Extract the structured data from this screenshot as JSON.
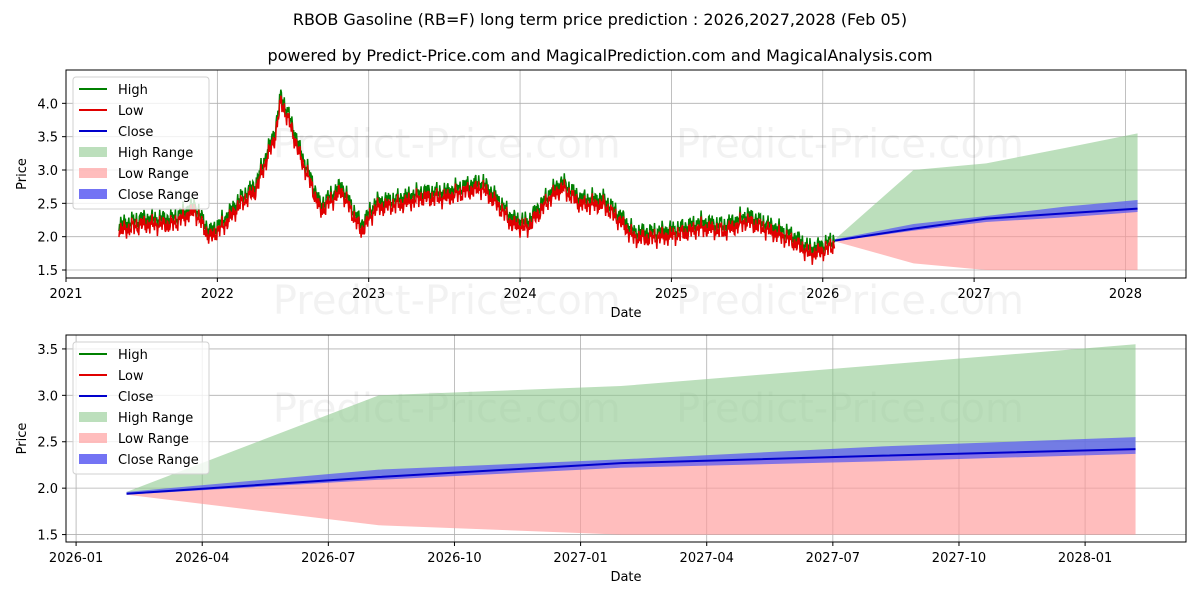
{
  "title_line1": "RBOB Gasoline (RB=F) long term price prediction : 2026,2027,2028 (Feb 05)",
  "title_line2": "powered by Predict-Price.com and MagicalPrediction.com and MagicalAnalysis.com",
  "watermark": "Predict-Price.com",
  "colors": {
    "high": "#008000",
    "low": "#e00000",
    "close": "#0000cc",
    "high_range": "#8fc98f",
    "low_range": "#ff9a9a",
    "close_range": "#5b5bf2"
  },
  "chart_data": [
    {
      "type": "line",
      "name": "history-and-forecast",
      "xlabel": "Date",
      "ylabel": "Price",
      "xlim": [
        2021.0,
        2028.4
      ],
      "ylim": [
        1.38,
        4.5
      ],
      "xticks": [
        2021,
        2022,
        2023,
        2024,
        2025,
        2026,
        2027,
        2028
      ],
      "xtick_labels": [
        "2021",
        "2022",
        "2023",
        "2024",
        "2025",
        "2026",
        "2027",
        "2028"
      ],
      "yticks": [
        1.5,
        2.0,
        2.5,
        3.0,
        3.5,
        4.0
      ],
      "ytick_labels": [
        "1.5",
        "2.0",
        "2.5",
        "3.0",
        "3.5",
        "4.0"
      ],
      "legend": [
        "High",
        "Low",
        "Close",
        "High Range",
        "Low Range",
        "Close Range"
      ],
      "history_anchors": [
        [
          2021.35,
          2.1
        ],
        [
          2021.5,
          2.2
        ],
        [
          2021.7,
          2.2
        ],
        [
          2021.85,
          2.4
        ],
        [
          2021.95,
          2.0
        ],
        [
          2022.05,
          2.2
        ],
        [
          2022.15,
          2.5
        ],
        [
          2022.25,
          2.7
        ],
        [
          2022.33,
          3.2
        ],
        [
          2022.38,
          3.5
        ],
        [
          2022.42,
          4.05
        ],
        [
          2022.48,
          3.7
        ],
        [
          2022.55,
          3.2
        ],
        [
          2022.62,
          2.8
        ],
        [
          2022.68,
          2.4
        ],
        [
          2022.82,
          2.7
        ],
        [
          2022.95,
          2.1
        ],
        [
          2023.05,
          2.45
        ],
        [
          2023.2,
          2.5
        ],
        [
          2023.35,
          2.6
        ],
        [
          2023.5,
          2.6
        ],
        [
          2023.65,
          2.7
        ],
        [
          2023.75,
          2.75
        ],
        [
          2023.85,
          2.5
        ],
        [
          2023.95,
          2.2
        ],
        [
          2024.05,
          2.15
        ],
        [
          2024.2,
          2.6
        ],
        [
          2024.28,
          2.75
        ],
        [
          2024.4,
          2.5
        ],
        [
          2024.55,
          2.5
        ],
        [
          2024.68,
          2.2
        ],
        [
          2024.75,
          2.0
        ],
        [
          2024.9,
          2.0
        ],
        [
          2025.05,
          2.05
        ],
        [
          2025.2,
          2.15
        ],
        [
          2025.35,
          2.1
        ],
        [
          2025.5,
          2.25
        ],
        [
          2025.65,
          2.1
        ],
        [
          2025.8,
          1.95
        ],
        [
          2025.92,
          1.75
        ],
        [
          2026.0,
          1.8
        ],
        [
          2026.08,
          1.9
        ]
      ],
      "forecast": {
        "x": [
          2026.08,
          2026.6,
          2027.08,
          2027.6,
          2028.08
        ],
        "close": [
          1.94,
          2.12,
          2.27,
          2.35,
          2.42
        ],
        "close_range_low": [
          1.93,
          2.09,
          2.22,
          2.29,
          2.37
        ],
        "close_range_high": [
          1.96,
          2.19,
          2.31,
          2.45,
          2.55
        ],
        "high_range_top": [
          1.96,
          3.0,
          3.1,
          3.33,
          3.55
        ],
        "low_range_bottom": [
          1.93,
          1.6,
          1.5,
          1.5,
          1.5
        ]
      }
    },
    {
      "type": "line",
      "name": "forecast-zoom",
      "xlabel": "Date",
      "ylabel": "Price",
      "xlim": [
        2025.98,
        2028.2
      ],
      "ylim": [
        1.42,
        3.65
      ],
      "xticks": [
        2026.0,
        2026.25,
        2026.5,
        2026.75,
        2027.0,
        2027.25,
        2027.5,
        2027.75,
        2028.0
      ],
      "xtick_labels": [
        "2026-01",
        "2026-04",
        "2026-07",
        "2026-10",
        "2027-01",
        "2027-04",
        "2027-07",
        "2027-10",
        "2028-01"
      ],
      "yticks": [
        1.5,
        2.0,
        2.5,
        3.0,
        3.5
      ],
      "ytick_labels": [
        "1.5",
        "2.0",
        "2.5",
        "3.0",
        "3.5"
      ],
      "legend": [
        "High",
        "Low",
        "Close",
        "High Range",
        "Low Range",
        "Close Range"
      ],
      "forecast": {
        "x": [
          2026.1,
          2026.6,
          2027.08,
          2027.6,
          2028.1
        ],
        "close": [
          1.94,
          2.12,
          2.27,
          2.35,
          2.42
        ],
        "close_range_low": [
          1.93,
          2.09,
          2.22,
          2.29,
          2.37
        ],
        "close_range_high": [
          1.96,
          2.2,
          2.31,
          2.45,
          2.55
        ],
        "high_range_top": [
          1.96,
          3.0,
          3.1,
          3.33,
          3.55
        ],
        "low_range_bottom": [
          1.93,
          1.6,
          1.5,
          1.5,
          1.5
        ]
      }
    }
  ]
}
